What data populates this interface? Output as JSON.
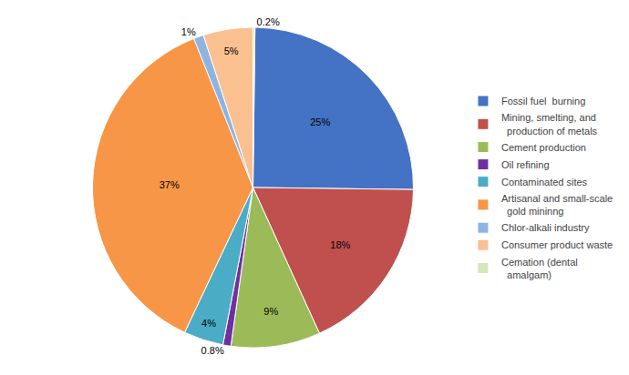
{
  "chart_data": {
    "type": "pie",
    "categories": [
      "Fossil fuel  burning",
      "Mining, smelting, and\n  production of metals",
      "Cement production",
      "Oil refining",
      "Contaminated sites",
      "Artisanal and small-scale\n  gold mininng",
      "Chlor-alkali industry",
      "Consumer product waste",
      "Cemation (dental\n  amalgam)"
    ],
    "values": [
      25,
      18,
      9,
      0.8,
      4,
      37,
      1,
      5,
      0.2
    ],
    "value_labels": [
      "25%",
      "18%",
      "9%",
      "0.8%",
      "4%",
      "37%",
      "1%",
      "5%",
      "0.2%"
    ],
    "colors": [
      "#4472C4",
      "#C0504D",
      "#9BBB59",
      "#7030A0",
      "#4BACC6",
      "#F79646",
      "#8DB4E2",
      "#FAC090",
      "#D7E4BC"
    ],
    "data_labels": true,
    "legend": "right"
  }
}
